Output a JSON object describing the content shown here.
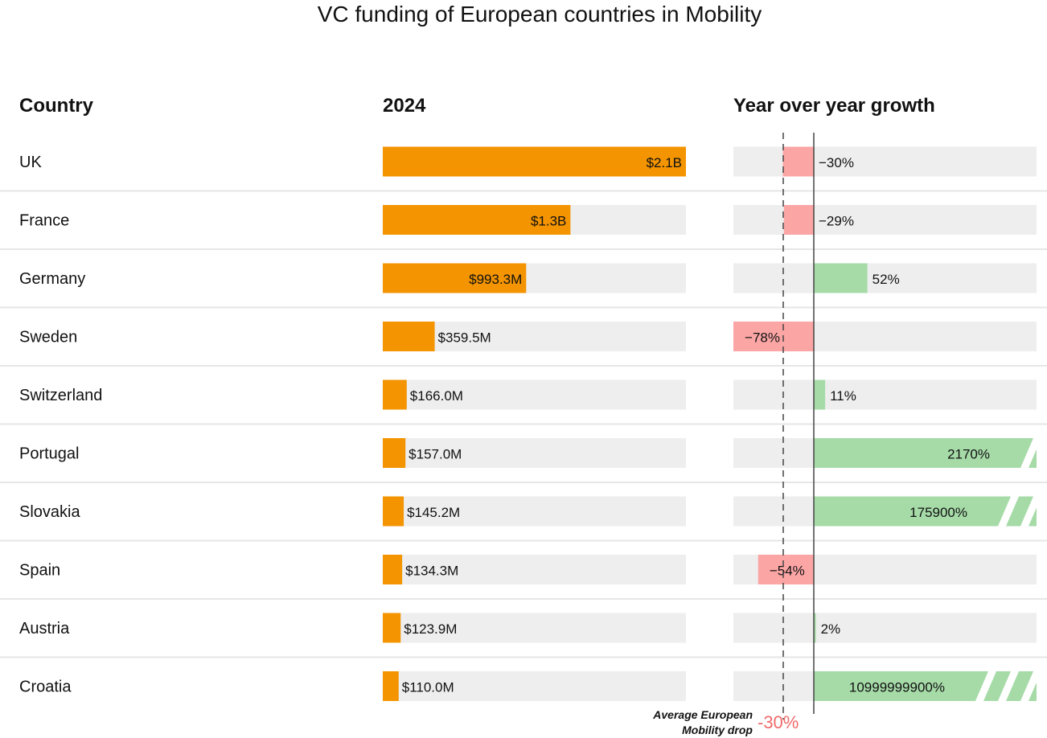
{
  "chart_data": {
    "type": "table",
    "title": "VC funding of European countries in Mobility",
    "columns": [
      "Country",
      "2024",
      "Year over year growth"
    ],
    "categories": [
      "UK",
      "France",
      "Germany",
      "Sweden",
      "Switzerland",
      "Portugal",
      "Slovakia",
      "Spain",
      "Austria",
      "Croatia"
    ],
    "funding_usd_m": [
      2100,
      1300,
      993.3,
      359.5,
      166.0,
      157.0,
      145.2,
      134.3,
      123.9,
      110.0
    ],
    "funding_labels": [
      "$2.1B",
      "$1.3B",
      "$993.3M",
      "$359.5M",
      "$166.0M",
      "$157.0M",
      "$145.2M",
      "$134.3M",
      "$123.9M",
      "$110.0M"
    ],
    "growth_pct": [
      -30,
      -29,
      52,
      -78,
      11,
      2170,
      175900,
      -54,
      2,
      10999999900
    ],
    "growth_labels": [
      "−30%",
      "−29%",
      "52%",
      "−78%",
      "11%",
      "2170%",
      "175900%",
      "−54%",
      "2%",
      "10999999900%"
    ],
    "truncated_breaks": [
      0,
      0,
      0,
      0,
      0,
      1,
      2,
      0,
      0,
      3
    ],
    "reference_line": {
      "value": -30,
      "label": "Average European Mobility drop",
      "value_label": "-30%"
    },
    "colors": {
      "funding": "#f39400",
      "positive": "#a6dba8",
      "negative": "#fca5a5",
      "track": "#eeeeee",
      "reference": "#f06a6a"
    }
  }
}
